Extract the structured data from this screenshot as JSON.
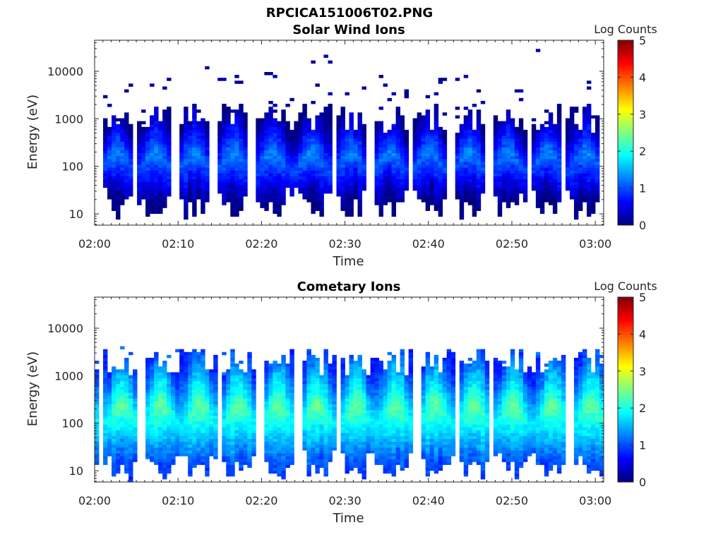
{
  "figure_title": "RPCICA151006T02.PNG",
  "colormap": [
    "#00007f",
    "#0000ff",
    "#007fff",
    "#00ffff",
    "#7fff7f",
    "#ffff00",
    "#ff7f00",
    "#ff0000",
    "#7f0000"
  ],
  "chart_data": [
    {
      "type": "heatmap",
      "title": "Solar Wind Ions",
      "xlabel": "Time",
      "ylabel": "Energy (eV)",
      "x_range": [
        "02:00",
        "03:01"
      ],
      "x_ticks": [
        "02:00",
        "02:10",
        "02:20",
        "02:30",
        "02:40",
        "02:50",
        "03:00"
      ],
      "y_scale": "log",
      "ylim": [
        5.8,
        45000
      ],
      "y_ticks": [
        10,
        100,
        1000,
        10000
      ],
      "y_tick_labels": [
        "10",
        "100",
        "1000",
        "10000"
      ],
      "colorbar_label": "Log Counts",
      "colorbar_range": [
        0,
        5
      ],
      "colorbar_ticks": [
        "0",
        "1",
        "2",
        "3",
        "4",
        "5"
      ],
      "grid": false,
      "description_values": {
        "dominant_log_counts": [
          0,
          1
        ],
        "peak_log_counts": 1.3,
        "core_energy_range_eV": [
          20,
          800
        ],
        "max_energy_eV": 35000
      }
    },
    {
      "type": "heatmap",
      "title": "Cometary Ions",
      "xlabel": "Time",
      "ylabel": "Energy (eV)",
      "x_range": [
        "02:00",
        "03:01"
      ],
      "x_ticks": [
        "02:00",
        "02:10",
        "02:20",
        "02:30",
        "02:40",
        "02:50",
        "03:00"
      ],
      "y_scale": "log",
      "ylim": [
        5.8,
        45000
      ],
      "y_ticks": [
        10,
        100,
        1000,
        10000
      ],
      "y_tick_labels": [
        "10",
        "100",
        "1000",
        "10000"
      ],
      "colorbar_label": "Log Counts",
      "colorbar_range": [
        0,
        5
      ],
      "colorbar_ticks": [
        "0",
        "1",
        "2",
        "3",
        "4",
        "5"
      ],
      "grid": false,
      "description_values": {
        "dominant_log_counts": [
          1,
          2.2
        ],
        "peak_log_counts": 2.4,
        "core_energy_range_eV": [
          15,
          1500
        ],
        "max_energy_eV": 4500
      }
    }
  ]
}
